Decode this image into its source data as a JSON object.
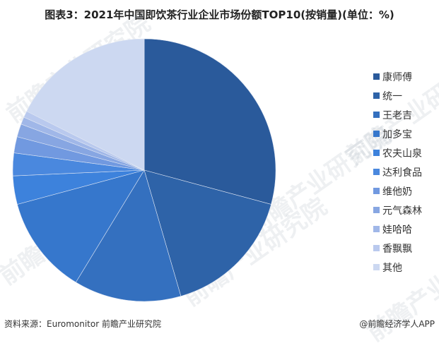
{
  "title": "图表3：2021年中国即饮茶行业企业市场份额TOP10(按销量)(单位：%)",
  "footer": {
    "source": "资料来源：Euromonitor 前瞻产业研究院",
    "brand": "@前瞻经济学人APP"
  },
  "watermark": "前瞻产业研究院",
  "chart_data": {
    "type": "pie",
    "title": "图表3：2021年中国即饮茶行业企业市场份额TOP10(按销量)(单位：%)",
    "unit": "%",
    "legend_position": "right",
    "start_angle": "12 o'clock, clockwise",
    "categories": [
      "康师傅",
      "统一",
      "王老吉",
      "加多宝",
      "农夫山泉",
      "达利食品",
      "维他奶",
      "元气森林",
      "娃哈哈",
      "香飘飘",
      "其他"
    ],
    "values": [
      29.2,
      16.3,
      13.2,
      12.1,
      3.5,
      2.8,
      2.0,
      1.6,
      0.9,
      0.8,
      17.6
    ],
    "colors": [
      "#2A5A9B",
      "#2E63A8",
      "#3470BF",
      "#3677CC",
      "#3D82DC",
      "#4A88DE",
      "#7199E0",
      "#87A6E2",
      "#A0B7E8",
      "#B9C9EE",
      "#CCD8F1"
    ]
  }
}
